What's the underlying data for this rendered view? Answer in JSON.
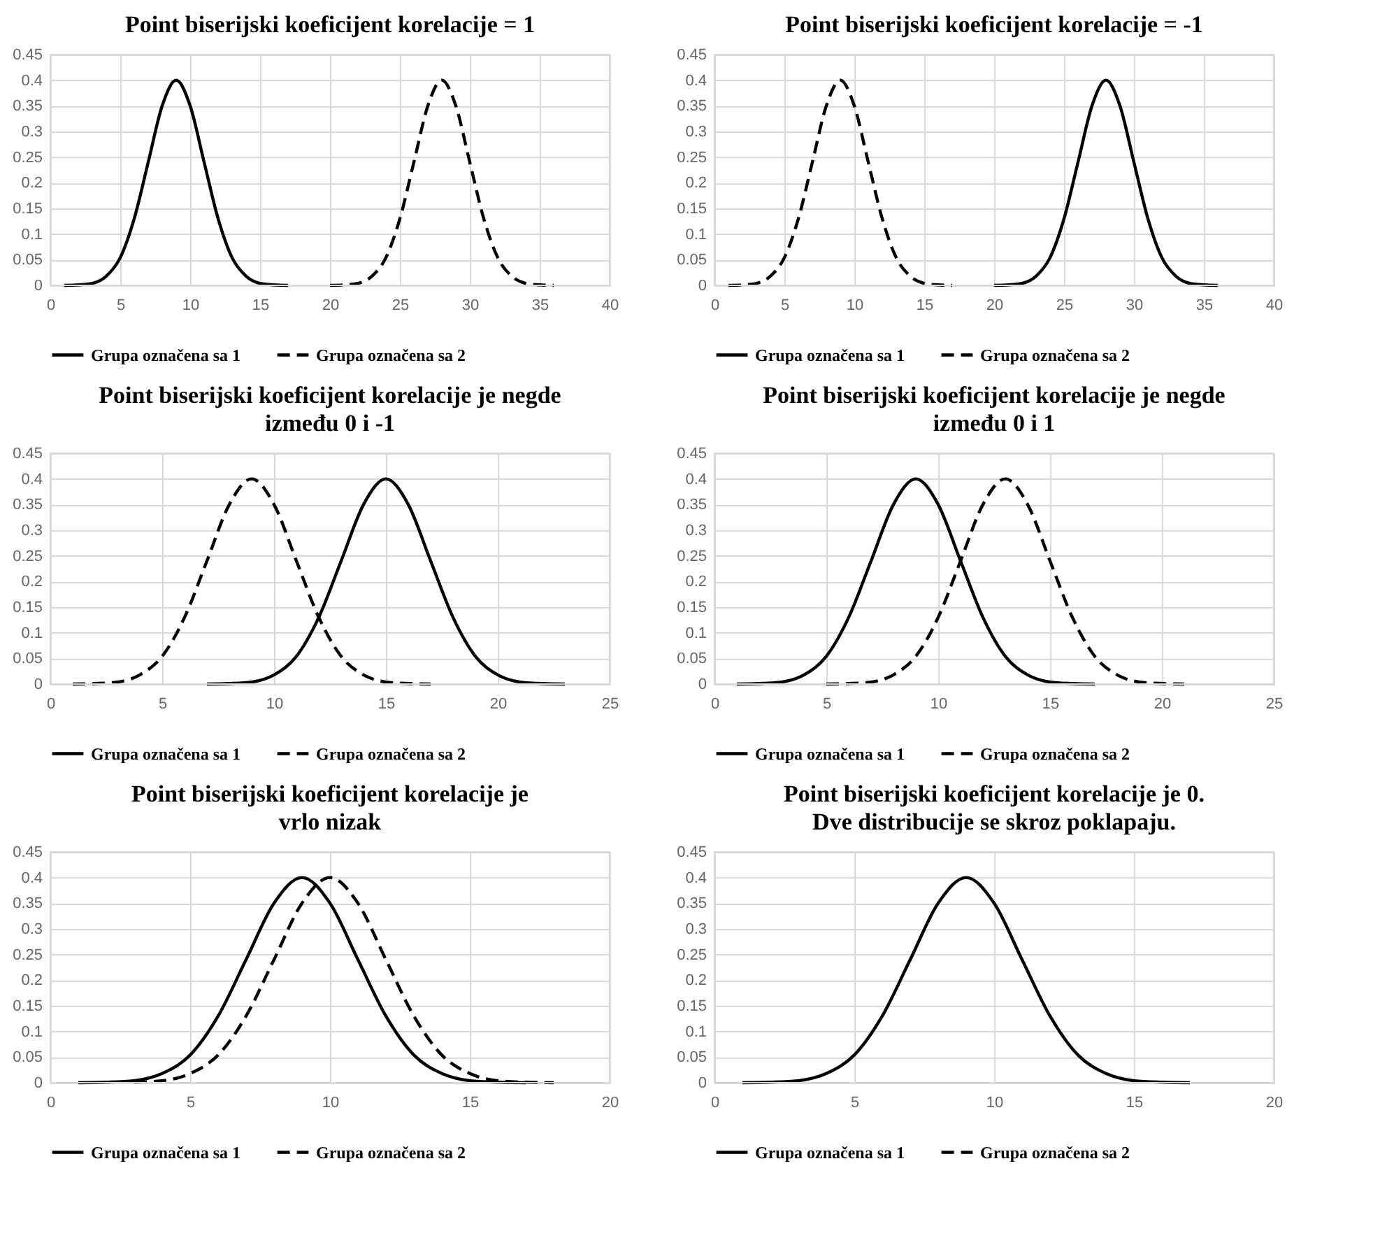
{
  "chart_data": [
    {
      "type": "line",
      "title": "Point biserijski koeficijent korelacije = 1",
      "xlim": [
        0,
        40
      ],
      "xticks": [
        0,
        5,
        10,
        15,
        20,
        25,
        30,
        35,
        40
      ],
      "ylim": [
        0,
        0.45
      ],
      "yticks": [
        0,
        0.05,
        0.1,
        0.15,
        0.2,
        0.25,
        0.3,
        0.35,
        0.4,
        0.45
      ],
      "grid": true,
      "legend": "bottom",
      "series": [
        {
          "name": "Grupa označena sa 1",
          "color": "#000000",
          "line_style": "solid",
          "x": [
            1,
            2,
            3,
            4,
            5,
            6,
            7,
            8,
            9,
            10,
            11,
            12,
            13,
            14,
            15,
            16,
            17
          ],
          "values": [
            0,
            0.001,
            0.004,
            0.018,
            0.054,
            0.13,
            0.24,
            0.35,
            0.4,
            0.35,
            0.24,
            0.13,
            0.054,
            0.018,
            0.004,
            0.001,
            0
          ]
        },
        {
          "name": "Grupa označena sa 2",
          "color": "#000000",
          "line_style": "dashed",
          "x": [
            20,
            21,
            22,
            23,
            24,
            25,
            26,
            27,
            28,
            29,
            30,
            31,
            32,
            33,
            34,
            35,
            36
          ],
          "values": [
            0,
            0.001,
            0.004,
            0.018,
            0.054,
            0.13,
            0.24,
            0.35,
            0.4,
            0.35,
            0.24,
            0.13,
            0.054,
            0.018,
            0.004,
            0.001,
            0
          ]
        }
      ]
    },
    {
      "type": "line",
      "title": "Point biserijski koeficijent korelacije = -1",
      "xlim": [
        0,
        40
      ],
      "xticks": [
        0,
        5,
        10,
        15,
        20,
        25,
        30,
        35,
        40
      ],
      "ylim": [
        0,
        0.45
      ],
      "yticks": [
        0,
        0.05,
        0.1,
        0.15,
        0.2,
        0.25,
        0.3,
        0.35,
        0.4,
        0.45
      ],
      "grid": true,
      "legend": "bottom",
      "series": [
        {
          "name": "Grupa označena sa 1",
          "color": "#000000",
          "line_style": "solid",
          "x": [
            20,
            21,
            22,
            23,
            24,
            25,
            26,
            27,
            28,
            29,
            30,
            31,
            32,
            33,
            34,
            35,
            36
          ],
          "values": [
            0,
            0.001,
            0.004,
            0.018,
            0.054,
            0.13,
            0.24,
            0.35,
            0.4,
            0.35,
            0.24,
            0.13,
            0.054,
            0.018,
            0.004,
            0.001,
            0
          ]
        },
        {
          "name": "Grupa označena sa 2",
          "color": "#000000",
          "line_style": "dashed",
          "x": [
            1,
            2,
            3,
            4,
            5,
            6,
            7,
            8,
            9,
            10,
            11,
            12,
            13,
            14,
            15,
            16,
            17
          ],
          "values": [
            0,
            0.001,
            0.004,
            0.018,
            0.054,
            0.13,
            0.24,
            0.35,
            0.4,
            0.35,
            0.24,
            0.13,
            0.054,
            0.018,
            0.004,
            0.001,
            0
          ]
        }
      ]
    },
    {
      "type": "line",
      "title": "Point biserijski koeficijent korelacije je negde\nizmeđu 0 i -1",
      "xlim": [
        0,
        25
      ],
      "xticks": [
        0,
        5,
        10,
        15,
        20,
        25
      ],
      "ylim": [
        0,
        0.45
      ],
      "yticks": [
        0,
        0.05,
        0.1,
        0.15,
        0.2,
        0.25,
        0.3,
        0.35,
        0.4,
        0.45
      ],
      "grid": true,
      "legend": "bottom",
      "series": [
        {
          "name": "Grupa označena sa 1",
          "color": "#000000",
          "line_style": "solid",
          "x": [
            7,
            8,
            9,
            10,
            11,
            12,
            13,
            14,
            15,
            16,
            17,
            18,
            19,
            20,
            21,
            22,
            23
          ],
          "values": [
            0,
            0.001,
            0.004,
            0.018,
            0.054,
            0.13,
            0.24,
            0.35,
            0.4,
            0.35,
            0.24,
            0.13,
            0.054,
            0.018,
            0.004,
            0.001,
            0
          ]
        },
        {
          "name": "Grupa označena sa 2",
          "color": "#000000",
          "line_style": "dashed",
          "x": [
            1,
            2,
            3,
            4,
            5,
            6,
            7,
            8,
            9,
            10,
            11,
            12,
            13,
            14,
            15,
            16,
            17
          ],
          "values": [
            0,
            0.001,
            0.004,
            0.018,
            0.054,
            0.13,
            0.24,
            0.35,
            0.4,
            0.35,
            0.24,
            0.13,
            0.054,
            0.018,
            0.004,
            0.001,
            0
          ]
        }
      ]
    },
    {
      "type": "line",
      "title": "Point biserijski koeficijent korelacije je negde\nizmeđu 0 i 1",
      "xlim": [
        0,
        25
      ],
      "xticks": [
        0,
        5,
        10,
        15,
        20,
        25
      ],
      "ylim": [
        0,
        0.45
      ],
      "yticks": [
        0,
        0.05,
        0.1,
        0.15,
        0.2,
        0.25,
        0.3,
        0.35,
        0.4,
        0.45
      ],
      "grid": true,
      "legend": "bottom",
      "series": [
        {
          "name": "Grupa označena sa 1",
          "color": "#000000",
          "line_style": "solid",
          "x": [
            1,
            2,
            3,
            4,
            5,
            6,
            7,
            8,
            9,
            10,
            11,
            12,
            13,
            14,
            15,
            16,
            17
          ],
          "values": [
            0,
            0.001,
            0.004,
            0.018,
            0.054,
            0.13,
            0.24,
            0.35,
            0.4,
            0.35,
            0.24,
            0.13,
            0.054,
            0.018,
            0.004,
            0.001,
            0
          ]
        },
        {
          "name": "Grupa označena sa 2",
          "color": "#000000",
          "line_style": "dashed",
          "x": [
            5,
            6,
            7,
            8,
            9,
            10,
            11,
            12,
            13,
            14,
            15,
            16,
            17,
            18,
            19,
            20,
            21
          ],
          "values": [
            0,
            0.001,
            0.004,
            0.018,
            0.054,
            0.13,
            0.24,
            0.35,
            0.4,
            0.35,
            0.24,
            0.13,
            0.054,
            0.018,
            0.004,
            0.001,
            0
          ]
        }
      ]
    },
    {
      "type": "line",
      "title": "Point biserijski koeficijent korelacije je\nvrlo nizak",
      "xlim": [
        0,
        20
      ],
      "xticks": [
        0,
        5,
        10,
        15,
        20
      ],
      "ylim": [
        0,
        0.45
      ],
      "yticks": [
        0,
        0.05,
        0.1,
        0.15,
        0.2,
        0.25,
        0.3,
        0.35,
        0.4,
        0.45
      ],
      "grid": true,
      "legend": "bottom",
      "series": [
        {
          "name": "Grupa označena sa 1",
          "color": "#000000",
          "line_style": "solid",
          "x": [
            1,
            2,
            3,
            4,
            5,
            6,
            7,
            8,
            9,
            10,
            11,
            12,
            13,
            14,
            15,
            16,
            17
          ],
          "values": [
            0,
            0.001,
            0.004,
            0.018,
            0.054,
            0.13,
            0.24,
            0.35,
            0.4,
            0.35,
            0.24,
            0.13,
            0.054,
            0.018,
            0.004,
            0.001,
            0
          ]
        },
        {
          "name": "Grupa označena sa 2",
          "color": "#000000",
          "line_style": "dashed",
          "x": [
            3,
            4,
            5,
            6,
            7,
            8,
            9,
            10,
            11,
            12,
            13,
            14,
            15,
            16,
            17,
            18
          ],
          "values": [
            0.001,
            0.004,
            0.018,
            0.054,
            0.13,
            0.24,
            0.35,
            0.4,
            0.35,
            0.24,
            0.13,
            0.054,
            0.018,
            0.004,
            0.001,
            0
          ]
        }
      ]
    },
    {
      "type": "line",
      "title": "Point biserijski koeficijent korelacije je 0.\nDve distribucije se skroz poklapaju.",
      "xlim": [
        0,
        20
      ],
      "xticks": [
        0,
        5,
        10,
        15,
        20
      ],
      "ylim": [
        0,
        0.45
      ],
      "yticks": [
        0,
        0.05,
        0.1,
        0.15,
        0.2,
        0.25,
        0.3,
        0.35,
        0.4,
        0.45
      ],
      "grid": true,
      "legend": "bottom",
      "series": [
        {
          "name": "Grupa označena sa 1",
          "color": "#000000",
          "line_style": "solid",
          "x": [
            1,
            2,
            3,
            4,
            5,
            6,
            7,
            8,
            9,
            10,
            11,
            12,
            13,
            14,
            15,
            16,
            17
          ],
          "values": [
            0,
            0.001,
            0.004,
            0.018,
            0.054,
            0.13,
            0.24,
            0.35,
            0.4,
            0.35,
            0.24,
            0.13,
            0.054,
            0.018,
            0.004,
            0.001,
            0
          ]
        },
        {
          "name": "Grupa označena sa 2",
          "color": "#000000",
          "line_style": "dashed",
          "values": [
            null,
            null,
            null,
            null,
            null,
            null,
            null,
            null,
            null,
            null,
            null,
            null,
            null,
            null,
            null,
            null,
            null
          ]
        }
      ]
    }
  ]
}
